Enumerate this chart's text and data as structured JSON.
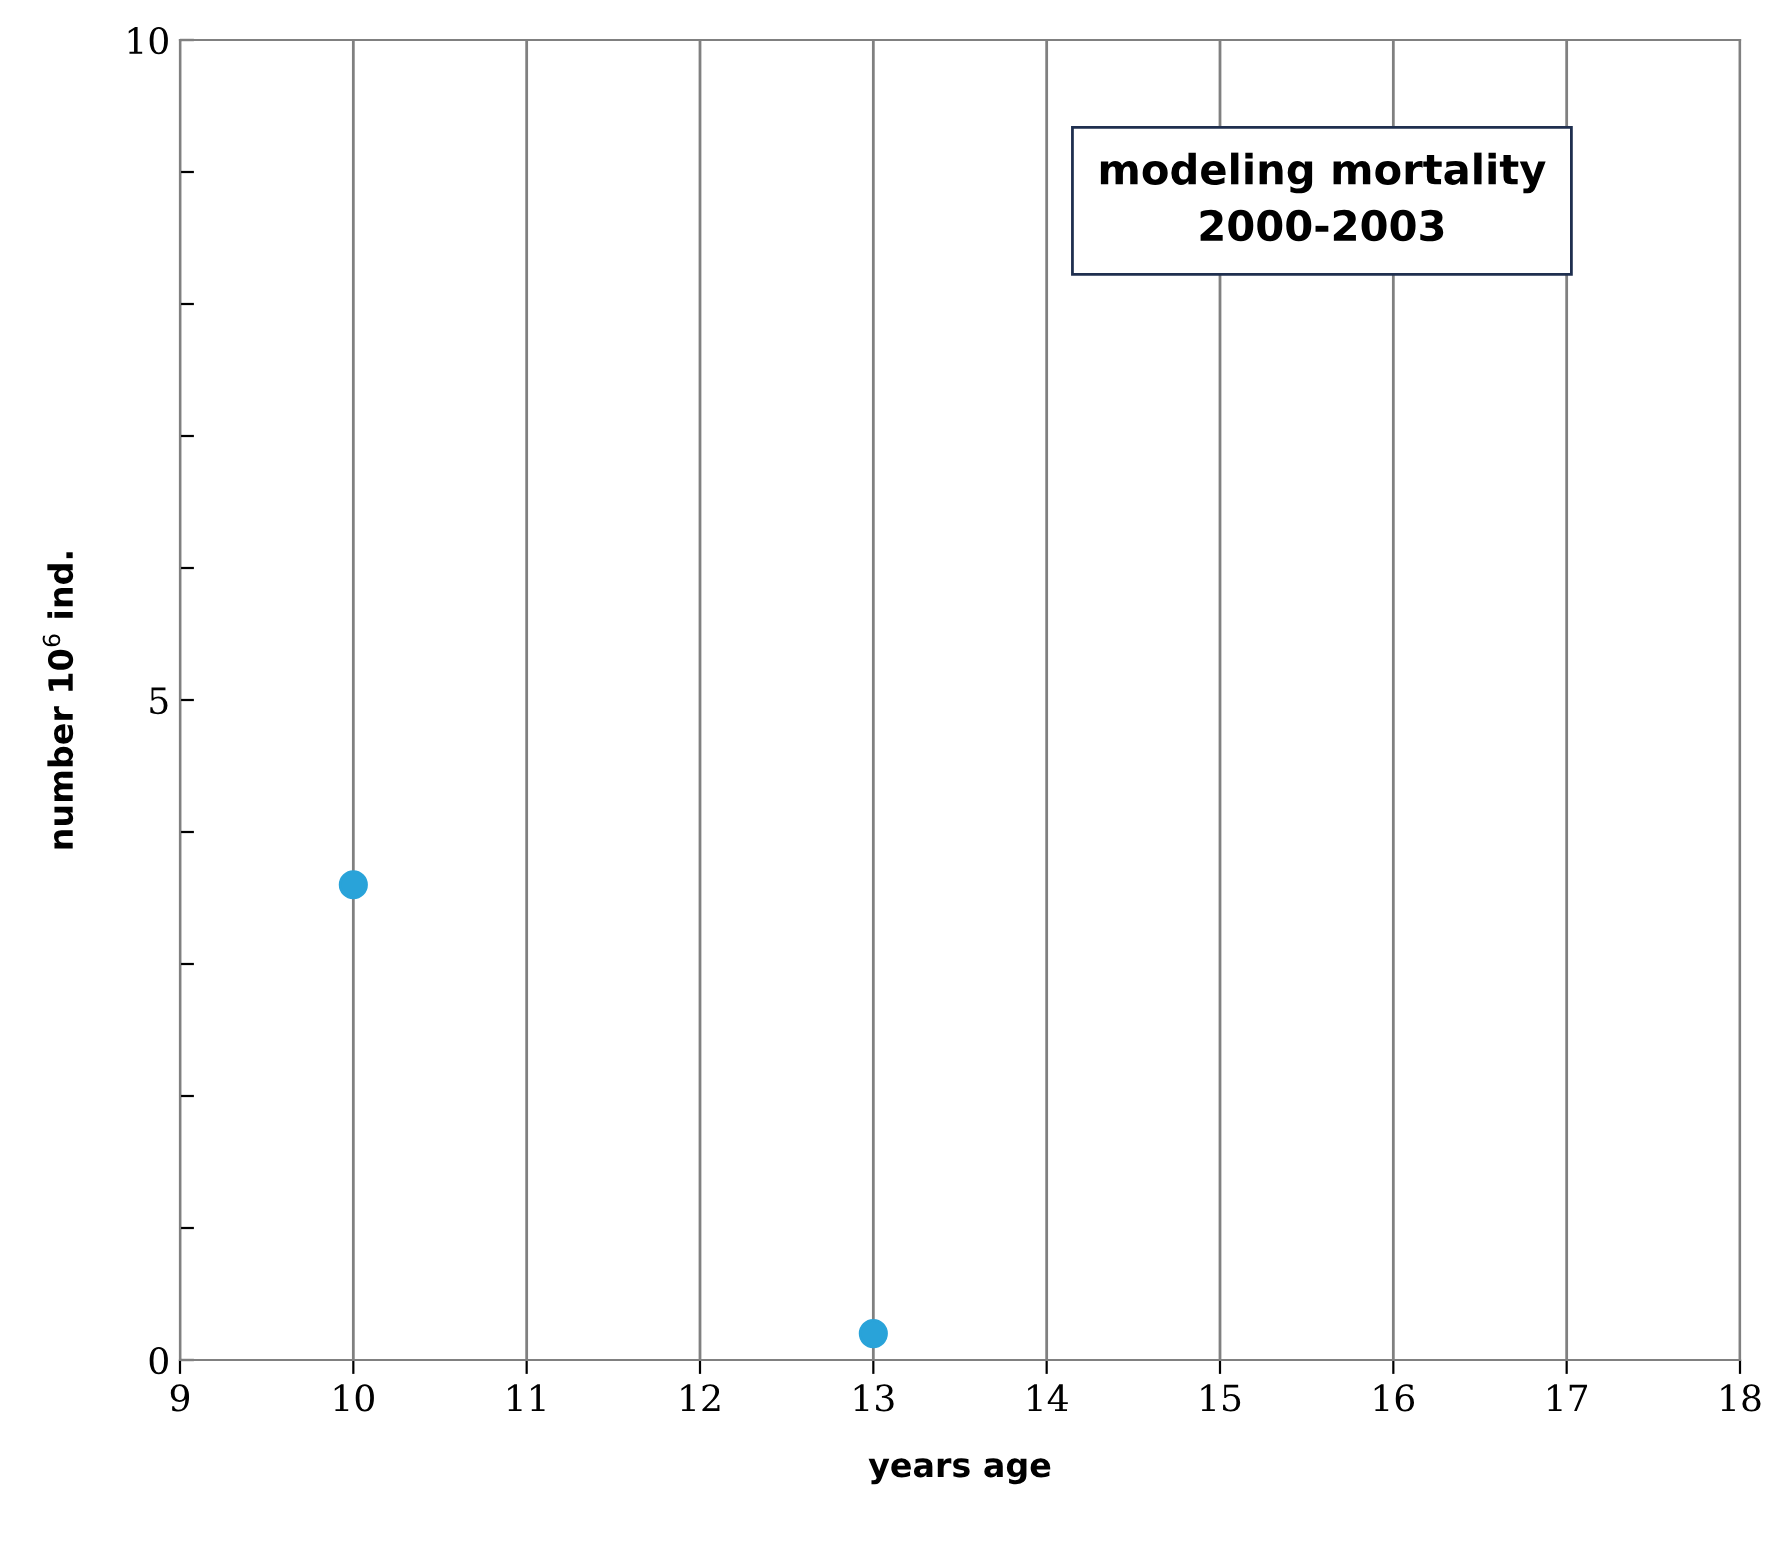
{
  "chart_data": {
    "type": "scatter",
    "title": "modeling mortality\n2000-2003",
    "xlabel": "years age",
    "ylabel": "number 10$^{6}$ ind.",
    "x": [
      10,
      13
    ],
    "series": [
      {
        "color": "#29a3d9",
        "values": [
          3.6,
          0.2
        ]
      }
    ],
    "marker": "circle",
    "xlim": [
      9,
      18
    ],
    "xticks": [
      9,
      10,
      11,
      12,
      13,
      14,
      15,
      16,
      17,
      18
    ],
    "ylim": [
      0,
      10
    ],
    "yticks": [
      0,
      {
        "value": 1,
        "label": null
      },
      {
        "value": 2,
        "label": null
      },
      {
        "value": 3,
        "label": null
      },
      {
        "value": 4,
        "label": null
      },
      5,
      {
        "value": 6,
        "label": null
      },
      {
        "value": 7,
        "label": null
      },
      {
        "value": 8,
        "label": null
      },
      {
        "value": 9,
        "label": null
      },
      10
    ],
    "grid": "x"
  }
}
